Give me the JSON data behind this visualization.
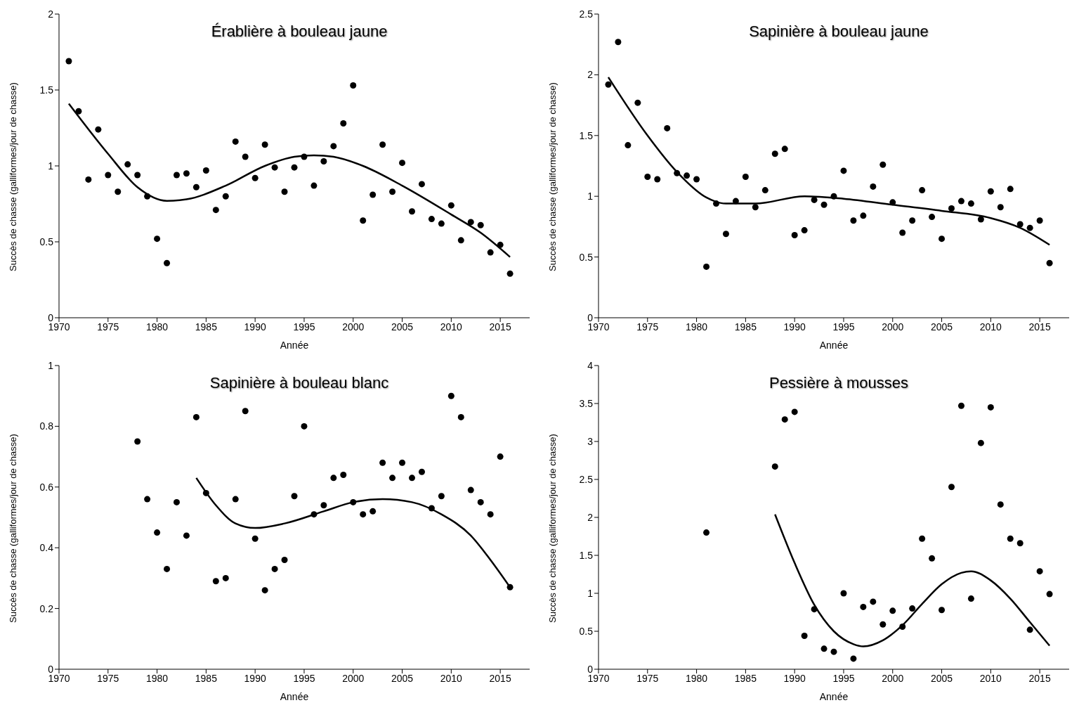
{
  "chart_data": [
    {
      "type": "scatter",
      "title": "Érablière à bouleau jaune",
      "xlabel": "Année",
      "ylabel": "Succès de chasse (galliformes/jour de chasse)",
      "xlim": [
        1970,
        2018
      ],
      "xticks": [
        1970,
        1975,
        1980,
        1985,
        1990,
        1995,
        2000,
        2005,
        2010,
        2015
      ],
      "ylim": [
        0,
        2
      ],
      "yticks": [
        0,
        0.5,
        1,
        1.5,
        2
      ],
      "series": [
        {
          "marker": "circle",
          "color": "#000000",
          "x": [
            1971,
            1972,
            1973,
            1974,
            1975,
            1976,
            1977,
            1978,
            1979,
            1980,
            1981,
            1982,
            1983,
            1984,
            1985,
            1986,
            1987,
            1988,
            1989,
            1990,
            1991,
            1992,
            1993,
            1994,
            1995,
            1996,
            1997,
            1998,
            1999,
            2000,
            2001,
            2002,
            2003,
            2004,
            2005,
            2006,
            2007,
            2008,
            2009,
            2010,
            2011,
            2012,
            2013,
            2014,
            2015,
            2016
          ],
          "values": [
            1.69,
            1.36,
            0.91,
            1.24,
            0.94,
            0.83,
            1.01,
            0.94,
            0.8,
            0.52,
            0.36,
            0.94,
            0.95,
            0.86,
            0.97,
            0.71,
            0.8,
            1.16,
            1.06,
            0.92,
            1.14,
            0.99,
            0.83,
            0.99,
            1.06,
            0.87,
            1.03,
            1.13,
            1.28,
            1.53,
            0.64,
            0.81,
            1.14,
            0.83,
            1.02,
            0.7,
            0.88,
            0.65,
            0.62,
            0.74,
            0.51,
            0.63,
            0.61,
            0.43,
            0.48,
            0.29
          ]
        },
        {
          "type": "line",
          "color": "#000000",
          "x": [
            1971,
            1975,
            1978,
            1981,
            1983,
            1987,
            1991,
            1994,
            1996,
            1998,
            2001,
            2005,
            2010,
            2013,
            2016
          ],
          "values": [
            1.41,
            1.08,
            0.86,
            0.77,
            0.78,
            0.87,
            1.0,
            1.06,
            1.07,
            1.06,
            1.0,
            0.87,
            0.68,
            0.56,
            0.4
          ]
        }
      ]
    },
    {
      "type": "scatter",
      "title": "Sapinière à bouleau jaune",
      "xlabel": "Année",
      "ylabel": "Succès de chasse (galliformes/jour de chasse)",
      "xlim": [
        1970,
        2018
      ],
      "xticks": [
        1970,
        1975,
        1980,
        1985,
        1990,
        1995,
        2000,
        2005,
        2010,
        2015
      ],
      "ylim": [
        0,
        2.5
      ],
      "yticks": [
        0,
        0.5,
        1,
        1.5,
        2,
        2.5
      ],
      "series": [
        {
          "marker": "circle",
          "color": "#000000",
          "x": [
            1971,
            1972,
            1973,
            1974,
            1975,
            1976,
            1977,
            1978,
            1979,
            1980,
            1981,
            1982,
            1983,
            1984,
            1985,
            1986,
            1987,
            1988,
            1989,
            1990,
            1991,
            1992,
            1993,
            1994,
            1995,
            1996,
            1997,
            1998,
            1999,
            2000,
            2001,
            2002,
            2003,
            2004,
            2005,
            2006,
            2007,
            2008,
            2009,
            2010,
            2011,
            2012,
            2013,
            2014,
            2015,
            2016
          ],
          "values": [
            1.92,
            2.27,
            1.42,
            1.77,
            1.16,
            1.14,
            1.56,
            1.19,
            1.17,
            1.14,
            0.42,
            0.94,
            0.69,
            0.96,
            1.16,
            0.91,
            1.05,
            1.35,
            1.39,
            0.68,
            0.72,
            0.97,
            0.93,
            1.0,
            1.21,
            0.8,
            0.84,
            1.08,
            1.26,
            0.95,
            0.7,
            0.8,
            1.05,
            0.83,
            0.65,
            0.9,
            0.96,
            0.94,
            0.81,
            1.04,
            0.91,
            1.06,
            0.77,
            0.74,
            0.8,
            0.45
          ]
        },
        {
          "type": "line",
          "color": "#000000",
          "x": [
            1971,
            1975,
            1978,
            1981,
            1983,
            1986,
            1991,
            1995,
            2000,
            2005,
            2010,
            2013,
            2016
          ],
          "values": [
            1.98,
            1.5,
            1.2,
            0.99,
            0.94,
            0.94,
            1.0,
            0.98,
            0.93,
            0.88,
            0.82,
            0.74,
            0.6
          ]
        }
      ]
    },
    {
      "type": "scatter",
      "title": "Sapinière à bouleau blanc",
      "xlabel": "Année",
      "ylabel": "Succès de chasse (galliformes/jour de chasse)",
      "xlim": [
        1970,
        2018
      ],
      "xticks": [
        1970,
        1975,
        1980,
        1985,
        1990,
        1995,
        2000,
        2005,
        2010,
        2015
      ],
      "ylim": [
        0,
        1
      ],
      "yticks": [
        0,
        0.2,
        0.4,
        0.6,
        0.8,
        1
      ],
      "series": [
        {
          "marker": "circle",
          "color": "#000000",
          "x": [
            1978,
            1979,
            1980,
            1981,
            1982,
            1983,
            1984,
            1985,
            1986,
            1987,
            1988,
            1989,
            1990,
            1991,
            1992,
            1993,
            1994,
            1995,
            1996,
            1997,
            1998,
            1999,
            2000,
            2001,
            2002,
            2003,
            2004,
            2005,
            2006,
            2007,
            2008,
            2009,
            2010,
            2011,
            2012,
            2013,
            2014,
            2015,
            2016
          ],
          "values": [
            0.75,
            0.56,
            0.45,
            0.33,
            0.55,
            0.44,
            0.83,
            0.58,
            0.29,
            0.3,
            0.56,
            0.85,
            0.43,
            0.26,
            0.33,
            0.36,
            0.57,
            0.8,
            0.51,
            0.54,
            0.63,
            0.64,
            0.55,
            0.51,
            0.52,
            0.68,
            0.63,
            0.68,
            0.63,
            0.65,
            0.53,
            0.57,
            0.9,
            0.83,
            0.59,
            0.55,
            0.51,
            0.7,
            0.27
          ]
        },
        {
          "type": "line",
          "color": "#000000",
          "x": [
            1984,
            1986,
            1988,
            1990,
            1993,
            1997,
            2000,
            2003,
            2006,
            2009,
            2012,
            2014,
            2016
          ],
          "values": [
            0.63,
            0.54,
            0.48,
            0.465,
            0.48,
            0.52,
            0.55,
            0.56,
            0.55,
            0.51,
            0.44,
            0.36,
            0.27
          ]
        }
      ]
    },
    {
      "type": "scatter",
      "title": "Pessière à mousses",
      "xlabel": "Année",
      "ylabel": "Succès de chasse (galliformes/jour de chasse)",
      "xlim": [
        1970,
        2018
      ],
      "xticks": [
        1970,
        1975,
        1980,
        1985,
        1990,
        1995,
        2000,
        2005,
        2010,
        2015
      ],
      "ylim": [
        0,
        4
      ],
      "yticks": [
        0,
        0.5,
        1,
        1.5,
        2,
        2.5,
        3,
        3.5,
        4
      ],
      "series": [
        {
          "marker": "circle",
          "color": "#000000",
          "x": [
            1981,
            1988,
            1989,
            1990,
            1991,
            1992,
            1993,
            1994,
            1995,
            1996,
            1997,
            1998,
            1999,
            2000,
            2001,
            2002,
            2003,
            2004,
            2005,
            2006,
            2007,
            2008,
            2009,
            2010,
            2011,
            2012,
            2013,
            2014,
            2015,
            2016
          ],
          "values": [
            1.8,
            2.67,
            3.29,
            3.39,
            0.44,
            0.79,
            0.27,
            0.23,
            1.0,
            0.14,
            0.82,
            0.89,
            0.59,
            0.77,
            0.56,
            0.8,
            1.72,
            1.46,
            0.78,
            2.4,
            3.47,
            0.93,
            2.98,
            3.45,
            2.17,
            1.72,
            1.66,
            0.52,
            1.29,
            0.99
          ]
        },
        {
          "type": "line",
          "color": "#000000",
          "x": [
            1988,
            1990,
            1992,
            1994,
            1996,
            1997,
            1999,
            2001,
            2003,
            2005,
            2007,
            2008,
            2010,
            2012,
            2014,
            2016
          ],
          "values": [
            2.04,
            1.4,
            0.85,
            0.5,
            0.33,
            0.3,
            0.38,
            0.58,
            0.86,
            1.12,
            1.27,
            1.29,
            1.17,
            0.93,
            0.62,
            0.31
          ]
        }
      ]
    }
  ]
}
